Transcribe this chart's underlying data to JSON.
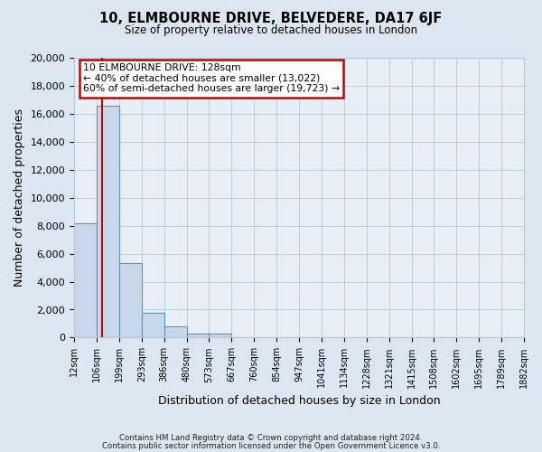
{
  "title_line1": "10, ELMBOURNE DRIVE, BELVEDERE, DA17 6JF",
  "title_line2": "Size of property relative to detached houses in London",
  "xlabel": "Distribution of detached houses by size in London",
  "ylabel": "Number of detached properties",
  "bin_labels": [
    "12sqm",
    "106sqm",
    "199sqm",
    "293sqm",
    "386sqm",
    "480sqm",
    "573sqm",
    "667sqm",
    "760sqm",
    "854sqm",
    "947sqm",
    "1041sqm",
    "1134sqm",
    "1228sqm",
    "1321sqm",
    "1415sqm",
    "1508sqm",
    "1602sqm",
    "1695sqm",
    "1789sqm",
    "1882sqm"
  ],
  "bar_heights": [
    8200,
    16600,
    5300,
    1800,
    800,
    300,
    300,
    0,
    0,
    0,
    0,
    0,
    0,
    0,
    0,
    0,
    0,
    0,
    0,
    0
  ],
  "bar_color": "#c8d8ea",
  "bar_edge_color": "#6090b8",
  "property_value": 128,
  "property_line_color": "#cc0000",
  "ylim": [
    0,
    20000
  ],
  "yticks": [
    0,
    2000,
    4000,
    6000,
    8000,
    10000,
    12000,
    14000,
    16000,
    18000,
    20000
  ],
  "annotation_title": "10 ELMBOURNE DRIVE: 128sqm",
  "annotation_line1": "← 40% of detached houses are smaller (13,022)",
  "annotation_line2": "60% of semi-detached houses are larger (19,723) →",
  "annotation_box_color": "#ffffff",
  "annotation_box_edge_color": "#cc0000",
  "footnote1": "Contains HM Land Registry data © Crown copyright and database right 2024.",
  "footnote2": "Contains public sector information licensed under the Open Government Licence v3.0.",
  "background_color": "#dce6f0",
  "plot_bg_color": "#e8eef6",
  "grid_color": "#b8c8d8",
  "bin_edges": [
    12,
    106,
    199,
    293,
    386,
    480,
    573,
    667,
    760,
    854,
    947,
    1041,
    1134,
    1228,
    1321,
    1415,
    1508,
    1602,
    1695,
    1789,
    1882
  ]
}
